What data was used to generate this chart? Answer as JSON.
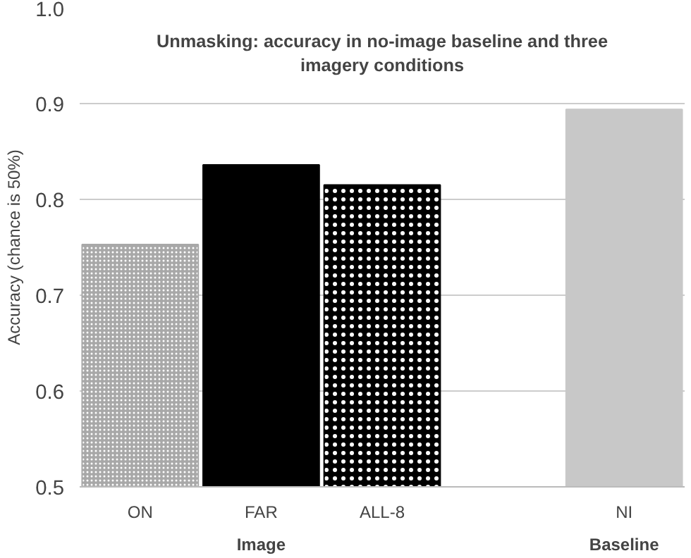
{
  "chart_data": {
    "type": "bar",
    "title": "Unmasking: accuracy in no-image baseline and three imagery conditions",
    "categories": [
      "ON",
      "FAR",
      "ALL-8",
      null,
      "NI"
    ],
    "values": [
      0.753,
      0.836,
      0.815,
      null,
      0.894
    ],
    "colors": [
      "#a8a8a8",
      "#000000",
      "#000000",
      "#ffffff",
      "#c8c8c8"
    ],
    "ylabel": "Accuracy (chance is 50%)",
    "annotations": [
      "Image",
      "Baseline"
    ],
    "ylim": [
      0.5,
      1.0
    ],
    "yticks": [
      0.5,
      0.6,
      0.7,
      0.8,
      0.9,
      {
        "value": 1,
        "label": "1.0"
      }
    ],
    "grid": "y"
  }
}
